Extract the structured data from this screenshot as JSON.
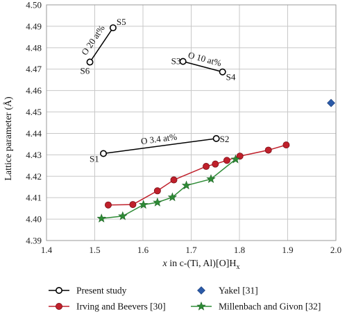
{
  "chart_data": {
    "type": "scatter",
    "xlabel": {
      "prefix": "x",
      "middle": " in c-(Ti, Al)[O]H",
      "sub": "x"
    },
    "ylabel": "Lattice parameter (Å)",
    "xlim": [
      1.4,
      2.0
    ],
    "ylim": [
      4.39,
      4.5
    ],
    "xticks": [
      "1.4",
      "1.5",
      "1.6",
      "1.7",
      "1.8",
      "1.9",
      "2.0"
    ],
    "yticks": [
      "4.39",
      "4.40",
      "4.41",
      "4.42",
      "4.43",
      "4.44",
      "4.45",
      "4.46",
      "4.47",
      "4.48",
      "4.49",
      "4.50"
    ],
    "grid": true,
    "legend_position": "bottom",
    "series": [
      {
        "name": "Present study",
        "marker": "circle-open",
        "color": "#000000",
        "fill": "#ffffff",
        "segments": [
          {
            "points": [
              [
                1.49,
                4.4733
              ],
              [
                1.538,
                4.4893
              ]
            ],
            "labels": [
              "S6",
              "S5"
            ],
            "note": "O 20 at%"
          },
          {
            "points": [
              [
                1.683,
                4.4736
              ],
              [
                1.765,
                4.4687
              ]
            ],
            "labels": [
              "S3",
              "S4"
            ],
            "note": "O 10 at%"
          },
          {
            "points": [
              [
                1.518,
                4.4306
              ],
              [
                1.752,
                4.4376
              ]
            ],
            "labels": [
              "S1",
              "S2"
            ],
            "note": "O 3.4 at%"
          }
        ]
      },
      {
        "name": "Yakel [31]",
        "marker": "diamond",
        "color": "#2b5aa8",
        "x": [
          1.99
        ],
        "y": [
          4.4542
        ]
      },
      {
        "name": "Irving and Beevers [30]",
        "marker": "circle",
        "color": "#c0202b",
        "x": [
          1.528,
          1.579,
          1.63,
          1.664,
          1.731,
          1.75,
          1.774,
          1.801,
          1.86,
          1.897
        ],
        "y": [
          4.4066,
          4.4068,
          4.4132,
          4.4183,
          4.4246,
          4.4257,
          4.4274,
          4.4294,
          4.4322,
          4.4346
        ]
      },
      {
        "name": "Millenbach and Givon [32]",
        "marker": "star",
        "color": "#2e8b36",
        "x": [
          1.514,
          1.558,
          1.601,
          1.63,
          1.661,
          1.69,
          1.741,
          1.792
        ],
        "y": [
          4.4003,
          4.4014,
          4.4067,
          4.4078,
          4.4102,
          4.4157,
          4.4187,
          4.4279
        ]
      }
    ]
  }
}
